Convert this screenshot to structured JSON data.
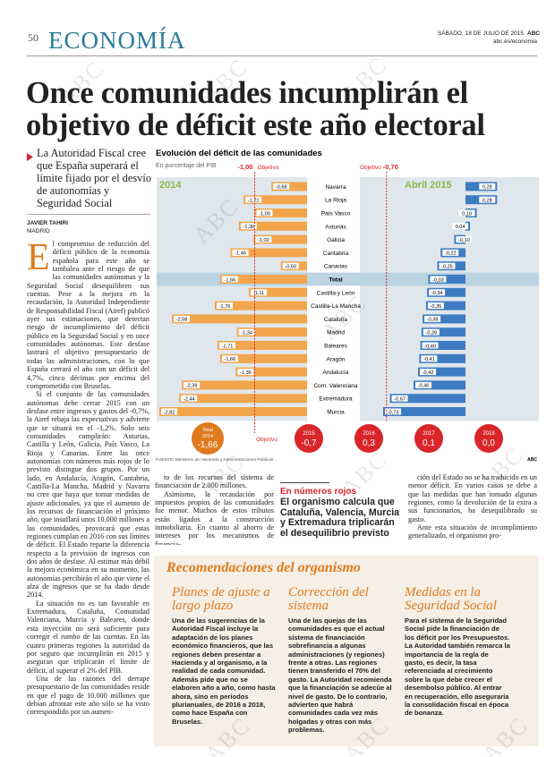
{
  "header": {
    "page": "50",
    "section": "ECONOMÍA",
    "date": "SÁBADO, 18 DE JULIO DE 2015",
    "brand": "ABC",
    "url": "abc.es/economia"
  },
  "watermark": "ABC",
  "article": {
    "headline": "Once comunidades incumplirán el objetivo de déficit este año electoral",
    "summary": "La Autoridad Fiscal cree que España superará el límite fijado por el desvío de autonomías y Seguridad Social",
    "author": "JAVIER TAHIRI",
    "location": "MADRID",
    "dropcap": "E",
    "columns": [
      [
        "l compromiso de reducción del déficit público de la economía española para este año se tambalea ante el riesgo de que las comunidades autónomas y la Seguridad Social desequilibren sus cuentas. Pese a la mejora en la recaudación, la Autoridad Independiente de Responsabilidad Fiscal (Airef) publicó ayer sus estimaciones, que detectan riesgo de incumplimiento del déficit público en la Seguridad Social y en once comunidades autónomas. Este desfase lastrará el objetivo presupuestario de todas las administraciones, con lo que España cerrará el año con un déficit del 4,7%, cinco décimas por encima del comprometido con Bruselas.",
        "Si el conjunto de las comunidades autónomas debe cerrar 2015 con un desfase entre ingresos y gastos del -0,7%, la Airef rebaja las expectativas y advierte que se situará en el -1,2%. Solo seis comunidades cumplirán: Asturias, Castilla y León, Galicia, País Vasco, La Rioja y Canarias. Entre las once autonomías con números más rojos de lo previsto distingue dos grupos. Por un lado, en Andalucía, Aragón, Cantabria, Castilla-La Mancha, Madrid y Navarra no cree que haya que tomar medidas de ajuste adicionales, ya que el aumento de los recursos de financiación el próximo año, que insuflará unos 10.000 millones a las comunidades, provocará que estas regiones cumplan en 2016 con sus límites de déficit. El Estado reparte la diferencia respecto a la previsión de ingresos con dos años de desfase. Al estimar más débil la mejora económica en su momento, las autonomías percibirán el año que viene el alza de ingresos que se ha dado desde 2014.",
        "La situación no es tan favorable en Extremadura, Cataluña, Comunidad Valenciana, Murcia y Baleares, donde esta inyección no será suficiente para corregir el rumbo de las cuentas. En las cuatro primeras regiones la autoridad da por seguro que incumplirán en 2015 y aseguran que triplicarán el límite de déficit, al superar el 2% del PIB.",
        "Una de las razones del derrape presupuestario de las comunidades reside en que el pago de 10.000 millones que debían afrontar este año sólo se ha visto correspondido por un aumen-"
      ],
      [
        "to de los recursos del sistema de financiación de 2.000 millones.",
        "Asimismo, la recaudación por impuestos propios de las comunidades fue menor. Muchos de estos tributos están ligados a la construcción inmobiliaria. En cuanto al ahorro de intereses por los mecanismos de financia-"
      ],
      [
        "ción del Estado no se ha traducido en un menor déficit. En varios casos se debe a que las medidas que han tomado algunas regiones, como la devolución de la extra a sus funcionarios, ha desequilibrado su gasto.",
        "Ante esta situación de incumplimiento generalizado, el organismo pro-"
      ]
    ]
  },
  "chart_data": {
    "type": "diverging-bar",
    "title": "Evolución del déficit de las comunidades",
    "subtitle": "En porcentaje del PIB",
    "categories": [
      "Navarra",
      "La Rioja",
      "País Vasco",
      "Asturias",
      "Galicia",
      "Cantabria",
      "Canarias",
      "Total",
      "Castilla y León",
      "Castilla-La Mancha",
      "Cataluña",
      "Madrid",
      "Baleares",
      "Aragón",
      "Andalucía",
      "Com. Valenciana",
      "Extremadura",
      "Murcia"
    ],
    "highlight": "Total",
    "series": [
      {
        "name": "2014",
        "color": "#f3a54c",
        "values": [
          -0.68,
          -1.21,
          -1.0,
          -1.3,
          -1.02,
          -1.46,
          -0.5,
          -1.66,
          -1.11,
          -1.76,
          -2.58,
          -1.34,
          -1.71,
          -1.66,
          -1.36,
          -2.39,
          -2.44,
          -2.82
        ],
        "value_labels": [
          "-0,68",
          "-1,21",
          "-1,00",
          "-1,30",
          "-1,02",
          "-1,46",
          "-0,50",
          "-1,66",
          "-1,11",
          "-1,76",
          "-2,58",
          "-1,34",
          "-1,71",
          "-1,66",
          "-1,36",
          "-2,39",
          "-2,44",
          "-2,82"
        ],
        "target": {
          "value": -1,
          "label": "-1,00",
          "text": "Objetivo"
        }
      },
      {
        "name": "Abril 2015",
        "color": "#3d7cc2",
        "values": [
          0.28,
          0.28,
          0.1,
          0.04,
          -0.1,
          -0.22,
          -0.25,
          -0.33,
          -0.34,
          -0.35,
          -0.38,
          -0.39,
          -0.4,
          -0.41,
          -0.42,
          -0.46,
          -0.67,
          -0.73
        ],
        "value_labels": [
          "0,28",
          "0,28",
          "0,10",
          "0,04",
          "-0,10",
          "-0,22",
          "-0,25",
          "-0,33",
          "-0,34",
          "-0,35",
          "-0,38",
          "-0,39",
          "-0,40",
          "-0,41",
          "-0,42",
          "-0,46",
          "-0,67",
          "-0,73"
        ],
        "target": {
          "value": -0.7,
          "label": "-0,70",
          "text": "Objetivo"
        }
      }
    ],
    "summary": {
      "total": {
        "label": "Total",
        "year": "2014",
        "value": -1.66,
        "value_label": "-1,66",
        "color": "#e07a1e"
      },
      "objective_text": "Objetivo",
      "color": "#d9262b",
      "targets": [
        {
          "year": "2015",
          "value": -0.7,
          "value_label": "-0,7"
        },
        {
          "year": "2016",
          "value": 0.3,
          "value_label": "0,3"
        },
        {
          "year": "2017",
          "value": 0.1,
          "value_label": "0,1"
        },
        {
          "year": "2018",
          "value": 0.0,
          "value_label": "0,0"
        }
      ]
    },
    "source": "FUENTE: Ministerio de Hacienda y Administraciones Públicas",
    "credit": "ABC"
  },
  "sidebar": {
    "kicker": "En números rojos",
    "text": "El organismo calcula que Cataluña, Valencia, Murcia y Extremadura triplicarán el desequilibrio previsto"
  },
  "box": {
    "title": "Recomendaciones del organismo",
    "items": [
      {
        "title": "Planes de ajuste a largo plazo",
        "text": "Una de las sugerencias de la Autoridad Fiscal incluye la adaptación de los planes económico financieros, que las regiones deben presentar a Hacienda y al organismo, a la realidad de cada comunidad. Además pide que no se elaboren año a año, como hasta ahora, sino en periodos plurianuales, de 2016 a 2018, como hace España con Bruselas."
      },
      {
        "title": "Corrección del sistema",
        "text": "Una de las quejas de las comunidades es que el actual sistema de financiación sobrefinancia a algunas administraciones (y regiones) frente a otras. Las regiones tienen transferido el 70% del gasto. La Autoridad recomienda que la financiación se adecúe al nivel de gasto. De lo contrario, advierten que habrá comunidades cada vez más holgadas y otras con más problemas."
      },
      {
        "title": "Medidas en la Seguridad Social",
        "text": "Para el sistema de la Seguridad Social pide la financiación de los déficit por los Presupuestos. La Autoridad también remarca la importancia de la regla de gasto, es decir, la tasa referenciada al crecimiento sobre la que debe crecer el desembolso público. Al entrar en recuperación, ello aseguraría la consolidación fiscal en época de bonanza."
      }
    ]
  }
}
